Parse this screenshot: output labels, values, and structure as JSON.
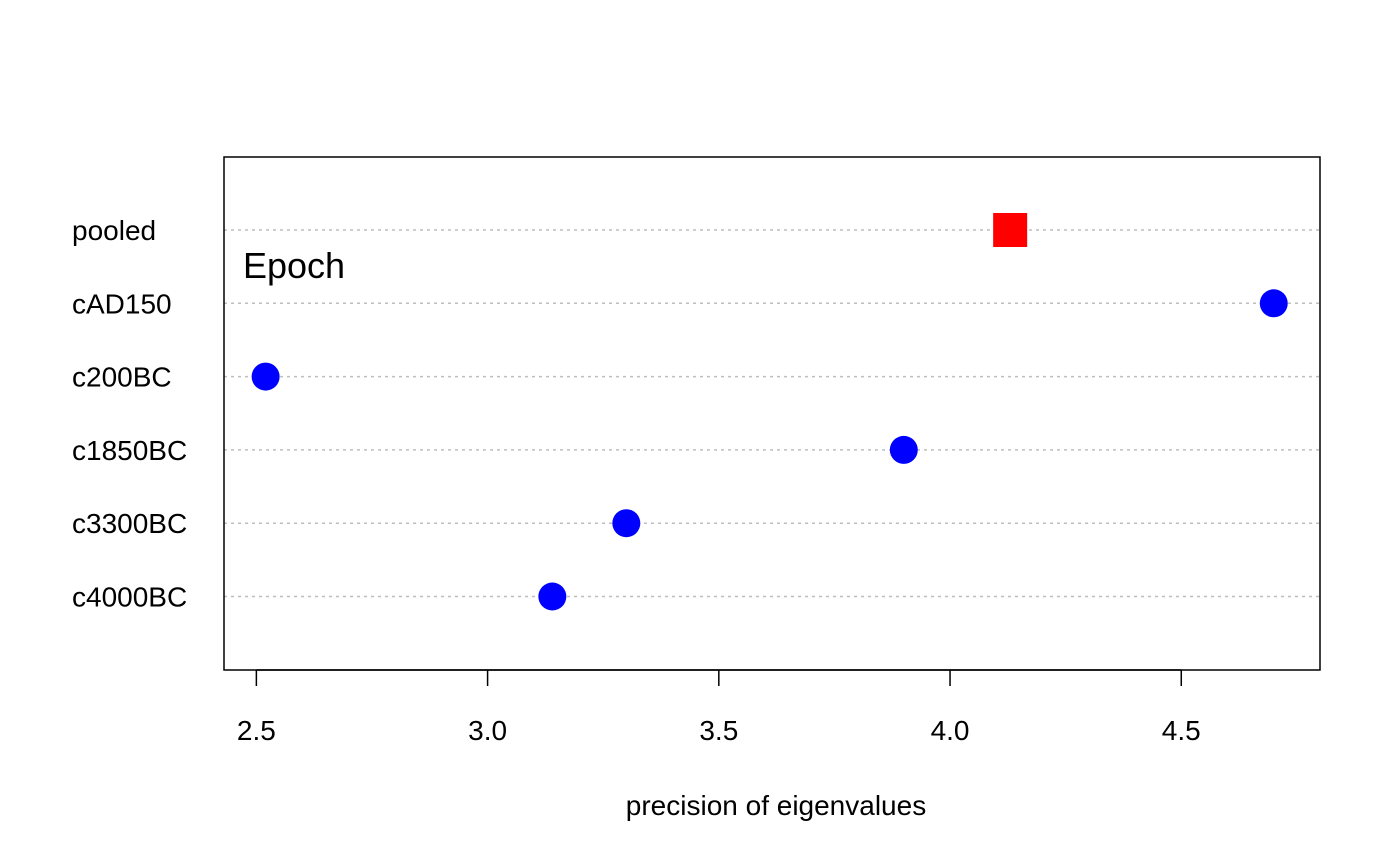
{
  "chart_data": {
    "type": "scatter",
    "title": "",
    "annotation": "Epoch",
    "xlabel": "precision of eigenvalues",
    "ylabel": "",
    "xlim": [
      2.43,
      4.8
    ],
    "xticks": [
      2.5,
      3.0,
      3.5,
      4.0,
      4.5
    ],
    "xtick_labels": [
      "2.5",
      "3.0",
      "3.5",
      "4.0",
      "4.5"
    ],
    "categories": [
      "pooled",
      "cAD150",
      "c200BC",
      "c1850BC",
      "c3300BC",
      "c4000BC"
    ],
    "series": [
      {
        "marker": "circle",
        "color": "#0000ff",
        "points": [
          {
            "category": "cAD150",
            "x": 4.7
          },
          {
            "category": "c200BC",
            "x": 2.52
          },
          {
            "category": "c1850BC",
            "x": 3.9
          },
          {
            "category": "c3300BC",
            "x": 3.3
          },
          {
            "category": "c4000BC",
            "x": 3.14
          }
        ]
      },
      {
        "marker": "square",
        "color": "#ff0000",
        "points": [
          {
            "category": "pooled",
            "x": 4.13
          }
        ]
      }
    ],
    "grid": "horizontal dotted",
    "legend": "none"
  }
}
